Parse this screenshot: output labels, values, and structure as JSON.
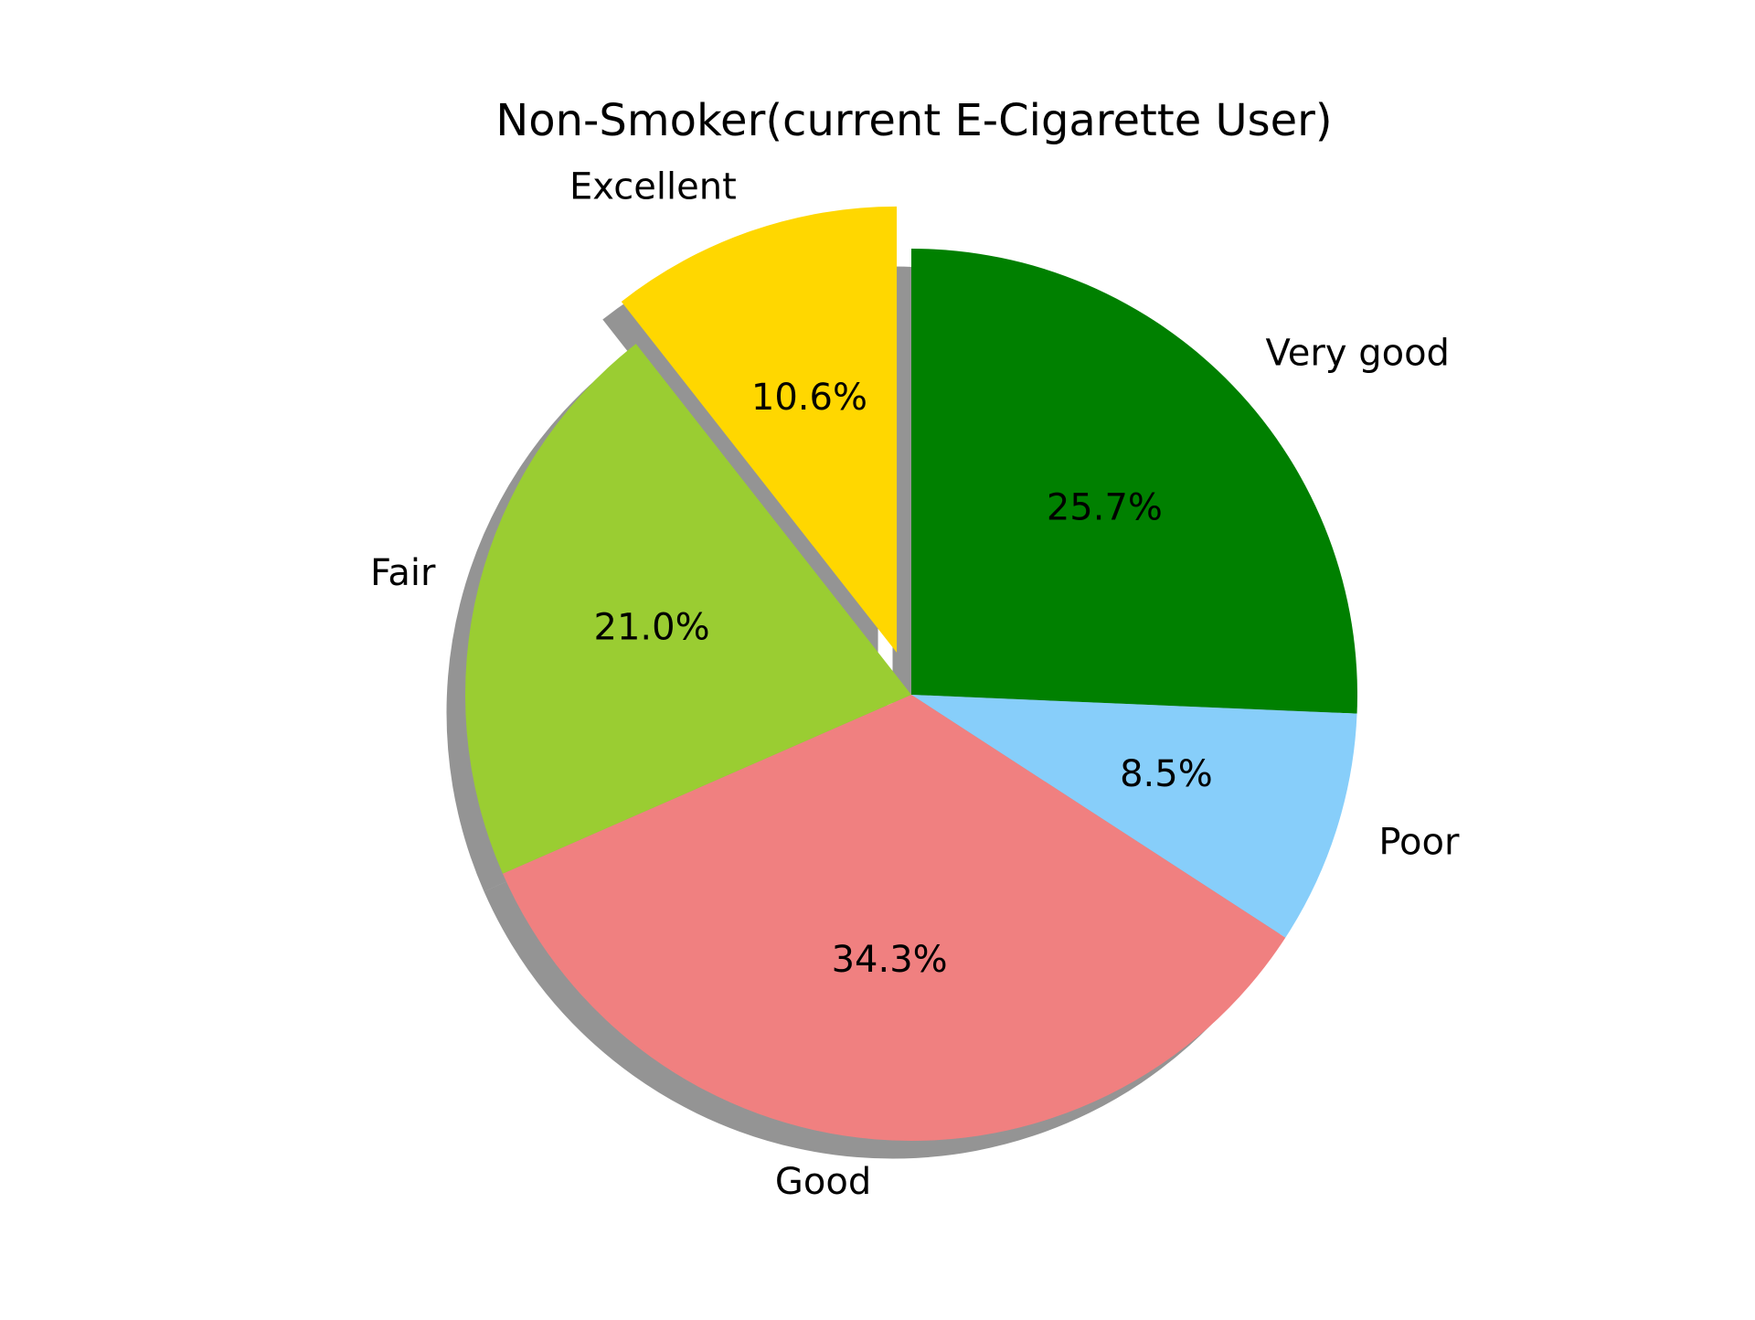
{
  "chart_data": {
    "type": "pie",
    "title": "Non-Smoker(current E-Cigarette User)",
    "categories": [
      "Very good",
      "Poor",
      "Good",
      "Fair",
      "Excellent"
    ],
    "values": [
      25.7,
      8.5,
      34.3,
      21.0,
      10.6
    ],
    "value_labels": [
      "25.7%",
      "8.5%",
      "34.3%",
      "21.0%",
      "10.6%"
    ],
    "colors": [
      "#008000",
      "#87CEFA",
      "#F08080",
      "#9ACD32",
      "#FFD700"
    ],
    "exploded": [
      "Excellent"
    ],
    "shadow": true,
    "start_angle_deg": 90,
    "direction": "clockwise",
    "legend": "none"
  }
}
